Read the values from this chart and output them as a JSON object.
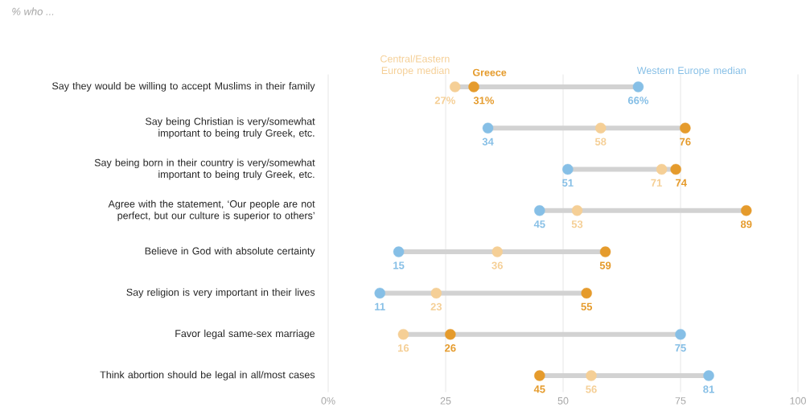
{
  "chart_data": {
    "type": "scatter",
    "orientation": "horizontal",
    "title": "% who ...",
    "categories": [
      "Say they would be willing to accept Muslims in their family",
      "Say being Christian is very/somewhat important to being truly Greek, etc.",
      "Say being born in their country is very/somewhat important to being truly Greek, etc.",
      "Agree with the statement, ‘Our people are not perfect, but our culture is superior to others’",
      "Believe in God with absolute certainty",
      "Say religion is very important in their lives",
      "Favor legal same-sex marriage",
      "Think abortion should be legal in all/most cases"
    ],
    "series": [
      {
        "name": "Central/Eastern Europe median",
        "color": "#f5cf96",
        "values": [
          27,
          58,
          71,
          53,
          36,
          23,
          16,
          56
        ],
        "value_labels": [
          "27%",
          "58",
          "71",
          "53",
          "36",
          "23",
          "16",
          "56"
        ]
      },
      {
        "name": "Greece",
        "color": "#e59b2c",
        "values": [
          31,
          76,
          74,
          89,
          59,
          55,
          26,
          45
        ],
        "value_labels": [
          "31%",
          "76",
          "74",
          "89",
          "59",
          "55",
          "26",
          "45"
        ]
      },
      {
        "name": "Western Europe median",
        "color": "#86bfe6",
        "values": [
          66,
          34,
          51,
          45,
          15,
          11,
          75,
          81
        ],
        "value_labels": [
          "66%",
          "34",
          "51",
          "45",
          "15",
          "11",
          "75",
          "81"
        ]
      }
    ],
    "xlim": [
      0,
      100
    ],
    "xticks": [
      {
        "value": 0,
        "label": "0%"
      },
      25,
      50,
      75,
      100
    ],
    "grid": "x",
    "marker": "circle"
  }
}
